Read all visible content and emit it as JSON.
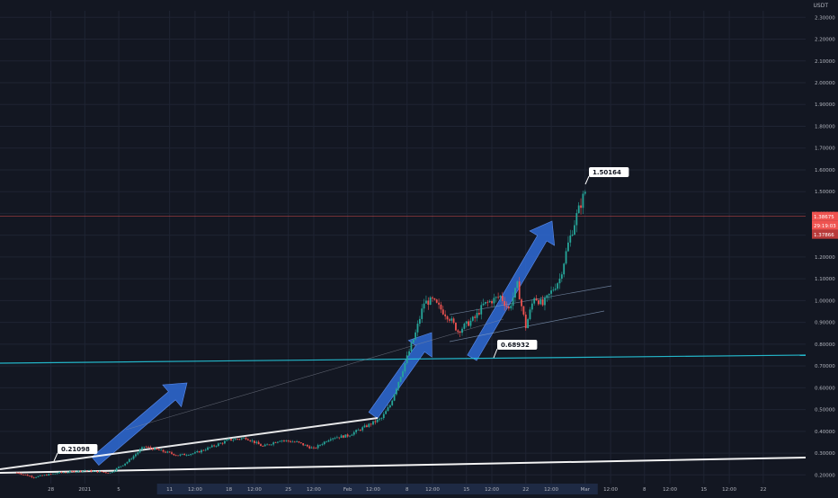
{
  "chart_data": {
    "type": "candlestick",
    "currency": "USDT",
    "title": "",
    "xlabel": "",
    "ylabel": "",
    "grid": true,
    "colors": {
      "background": "#131722",
      "grid": "#1f2433",
      "up": "#26a69a",
      "down": "#ef5350",
      "text": "#b2b5be",
      "arrow": "#2f6bd6",
      "support": "#26c6da",
      "trend": "#ffffff",
      "price_line": "#ef5350"
    },
    "ylim": [
      0.16,
      2.33
    ],
    "y_ticks": [
      "2.30000",
      "2.20000",
      "2.10000",
      "2.00000",
      "1.90000",
      "1.80000",
      "1.70000",
      "1.60000",
      "1.50000",
      "1.40000",
      "1.30000",
      "1.20000",
      "1.10000",
      "1.00000",
      "0.90000",
      "0.80000",
      "0.70000",
      "0.60000",
      "0.50000",
      "0.40000",
      "0.30000",
      "0.20000"
    ],
    "x_ticks": [
      "28",
      "2021",
      "5",
      "11",
      "12:00",
      "18",
      "12:00",
      "25",
      "12:00",
      "Feb",
      "12:00",
      "8",
      "12:00",
      "15",
      "12:00",
      "22",
      "12:00",
      "Mar",
      "12:00",
      "8",
      "12:00",
      "15",
      "12:00",
      "22"
    ],
    "x_tick_days": [
      -4,
      0,
      4,
      10,
      13,
      17,
      20,
      24,
      27,
      31,
      34,
      38,
      41,
      45,
      48,
      52,
      55,
      59,
      62,
      66,
      69,
      73,
      76,
      80
    ],
    "x_tick_highlight": [
      3,
      4,
      5,
      6,
      7,
      8,
      9,
      10,
      11,
      12,
      13,
      14,
      15,
      16,
      17
    ],
    "series": [
      {
        "x_days": [
          -8,
          -6,
          -3,
          0,
          3,
          5,
          7,
          9,
          11,
          13,
          15,
          17,
          19,
          21,
          23,
          25,
          27,
          29,
          31,
          33,
          35,
          36,
          37,
          38,
          39,
          40,
          41,
          43,
          44,
          45,
          46,
          47,
          48,
          49,
          50,
          51,
          52,
          53,
          54,
          55,
          56,
          57,
          58,
          59
        ],
        "y": [
          0.21,
          0.19,
          0.21,
          0.22,
          0.21,
          0.26,
          0.33,
          0.31,
          0.29,
          0.3,
          0.33,
          0.36,
          0.37,
          0.33,
          0.36,
          0.35,
          0.32,
          0.37,
          0.38,
          0.42,
          0.46,
          0.52,
          0.63,
          0.74,
          0.85,
          0.99,
          1.0,
          0.92,
          0.86,
          0.89,
          0.92,
          0.98,
          1.0,
          1.02,
          0.96,
          1.07,
          0.88,
          1.02,
          0.98,
          1.04,
          1.1,
          1.26,
          1.39,
          1.50164
        ]
      }
    ],
    "annotations": {
      "high": "1.50164",
      "support": "0.68932",
      "low": "0.21098",
      "current_price": "1.38675",
      "countdown": "29:19:03",
      "prev_price": "1.37866"
    }
  }
}
